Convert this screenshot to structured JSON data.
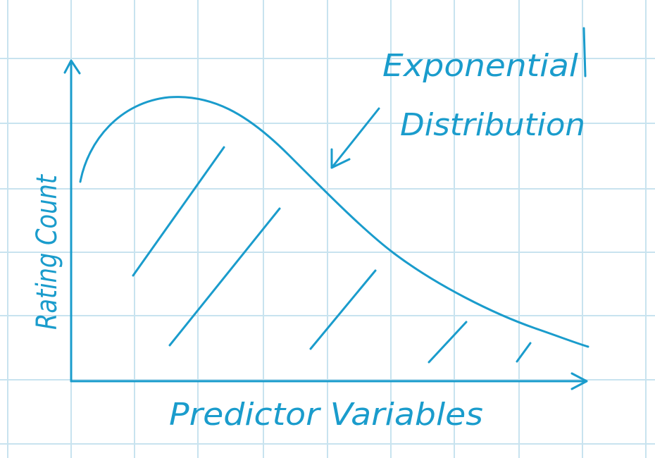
{
  "colors": {
    "ink": "#1a9ccc",
    "grid": "#c8e3ef",
    "background": "#ffffff"
  },
  "labels": {
    "x_axis": "Predictor Variables",
    "y_axis": "Rating Count",
    "annotation_line1": "Exponential",
    "annotation_line2": "Distribution"
  }
}
